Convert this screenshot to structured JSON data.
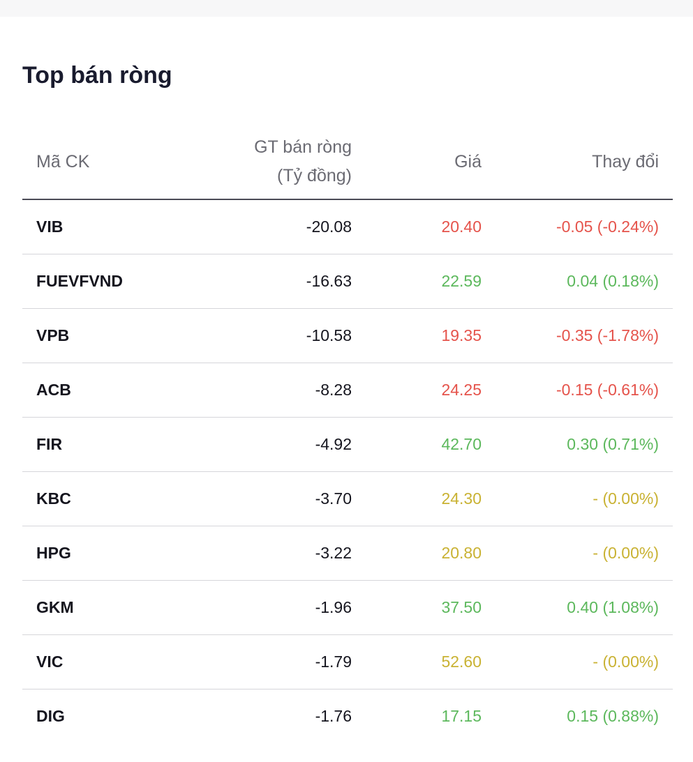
{
  "title": "Top bán ròng",
  "columns": {
    "symbol": "Mã CK",
    "net_value_line1": "GT bán ròng",
    "net_value_line2": "(Tỷ đồng)",
    "price": "Giá",
    "change": "Thay đổi"
  },
  "colors": {
    "up": "#5cb85c",
    "down": "#e5534b",
    "flat": "#c9b233"
  },
  "rows": [
    {
      "symbol": "VIB",
      "net_value": "-20.08",
      "price": "20.40",
      "change": "-0.05 (-0.24%)",
      "trend": "down"
    },
    {
      "symbol": "FUEVFVND",
      "net_value": "-16.63",
      "price": "22.59",
      "change": "0.04 (0.18%)",
      "trend": "up"
    },
    {
      "symbol": "VPB",
      "net_value": "-10.58",
      "price": "19.35",
      "change": "-0.35 (-1.78%)",
      "trend": "down"
    },
    {
      "symbol": "ACB",
      "net_value": "-8.28",
      "price": "24.25",
      "change": "-0.15 (-0.61%)",
      "trend": "down"
    },
    {
      "symbol": "FIR",
      "net_value": "-4.92",
      "price": "42.70",
      "change": "0.30 (0.71%)",
      "trend": "up"
    },
    {
      "symbol": "KBC",
      "net_value": "-3.70",
      "price": "24.30",
      "change": "- (0.00%)",
      "trend": "flat"
    },
    {
      "symbol": "HPG",
      "net_value": "-3.22",
      "price": "20.80",
      "change": "- (0.00%)",
      "trend": "flat"
    },
    {
      "symbol": "GKM",
      "net_value": "-1.96",
      "price": "37.50",
      "change": "0.40 (1.08%)",
      "trend": "up"
    },
    {
      "symbol": "VIC",
      "net_value": "-1.79",
      "price": "52.60",
      "change": "- (0.00%)",
      "trend": "flat"
    },
    {
      "symbol": "DIG",
      "net_value": "-1.76",
      "price": "17.15",
      "change": "0.15 (0.88%)",
      "trend": "up"
    }
  ]
}
